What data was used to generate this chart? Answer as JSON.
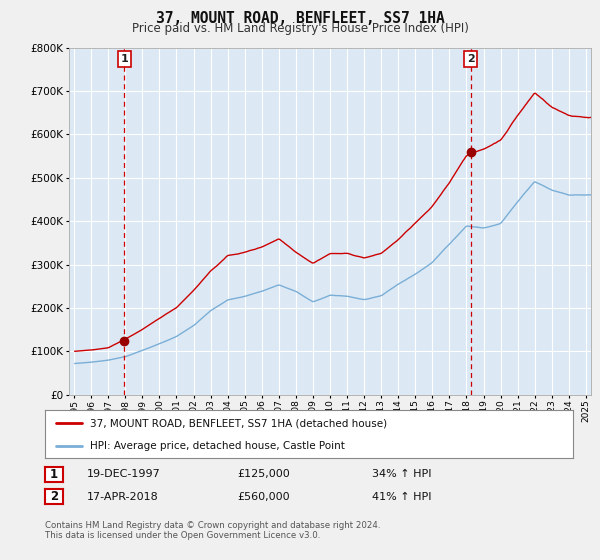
{
  "title": "37, MOUNT ROAD, BENFLEET, SS7 1HA",
  "subtitle": "Price paid vs. HM Land Registry's House Price Index (HPI)",
  "ylim": [
    0,
    800000
  ],
  "yticks": [
    0,
    100000,
    200000,
    300000,
    400000,
    500000,
    600000,
    700000,
    800000
  ],
  "bg_color": "#f0f0f0",
  "plot_bg_color": "#dce9f5",
  "grid_color": "#ffffff",
  "red_color": "#cc0000",
  "blue_color": "#7aaed6",
  "marker1_price": 125000,
  "marker2_price": 560000,
  "sale1_text": "19-DEC-1997",
  "sale1_price": "£125,000",
  "sale1_hpi": "34% ↑ HPI",
  "sale2_text": "17-APR-2018",
  "sale2_price": "£560,000",
  "sale2_hpi": "41% ↑ HPI",
  "legend1": "37, MOUNT ROAD, BENFLEET, SS7 1HA (detached house)",
  "legend2": "HPI: Average price, detached house, Castle Point",
  "footer": "Contains HM Land Registry data © Crown copyright and database right 2024.\nThis data is licensed under the Open Government Licence v3.0.",
  "marker1_x": 1997.95,
  "marker2_x": 2018.25,
  "xlim_left": 1994.7,
  "xlim_right": 2025.3
}
